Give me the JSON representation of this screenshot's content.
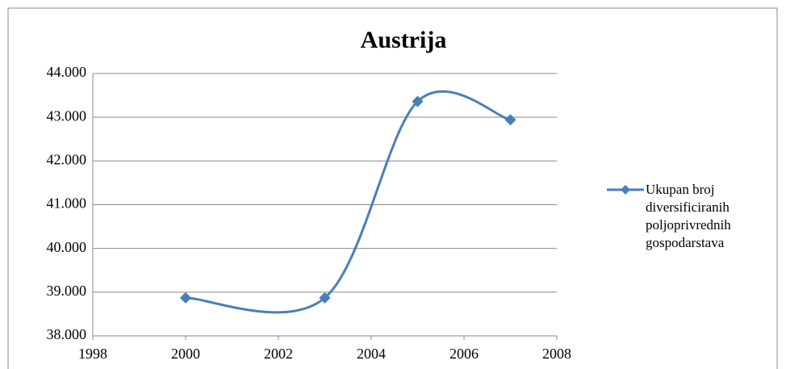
{
  "chart_data": {
    "type": "line",
    "title": "Austrija",
    "x": [
      2000,
      2003,
      2005,
      2007
    ],
    "series": [
      {
        "name": "Ukupan broj diversificiranih poljoprivrednih gospodarstava",
        "color": "#4a7ebb",
        "values": [
          38870,
          38870,
          43360,
          42940
        ]
      }
    ],
    "xlim": [
      1998,
      2008
    ],
    "xticks": [
      1998,
      2000,
      2002,
      2004,
      2006,
      2008
    ],
    "ylim": [
      38000,
      44000
    ],
    "yticks": [
      {
        "value": 38000,
        "label": "38.000"
      },
      {
        "value": 39000,
        "label": "39.000"
      },
      {
        "value": 40000,
        "label": "40.000"
      },
      {
        "value": 41000,
        "label": "41.000"
      },
      {
        "value": 42000,
        "label": "42.000"
      },
      {
        "value": 43000,
        "label": "43.000"
      },
      {
        "value": 44000,
        "label": "44.000"
      }
    ],
    "grid": true,
    "legend": "right",
    "smooth": true
  }
}
